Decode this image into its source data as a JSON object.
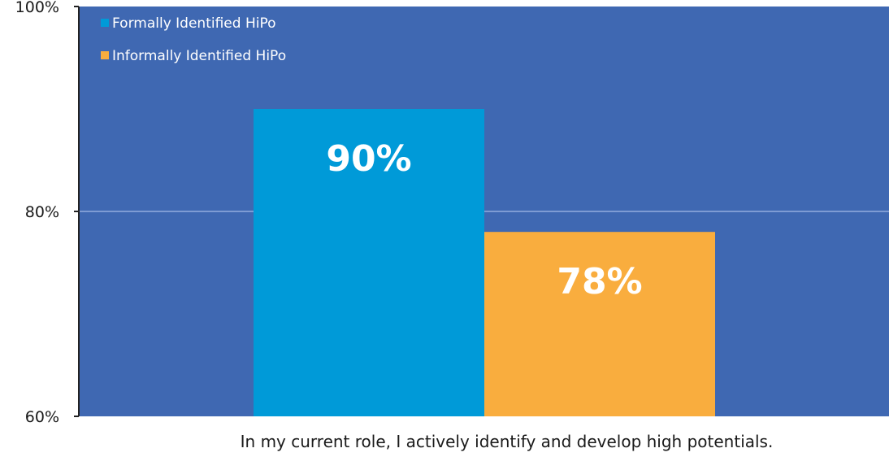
{
  "chart_data": {
    "type": "bar",
    "categories": [
      "In my current role, I actively identify and develop high potentials."
    ],
    "series": [
      {
        "name": "Formally Identified HiPo",
        "values": [
          90
        ],
        "color": "#009ad8",
        "label": "90%"
      },
      {
        "name": "Informally Identified HiPo",
        "values": [
          78
        ],
        "color": "#f9ad3e",
        "label": "78%"
      }
    ],
    "xlabel": "In my current role, I actively identify and develop high potentials.",
    "ylabel": "",
    "ylim": [
      60,
      100
    ],
    "yticks": [
      {
        "value": 60,
        "label": "60%"
      },
      {
        "value": 80,
        "label": "80%"
      },
      {
        "value": 100,
        "label": "100%"
      }
    ],
    "grid": true,
    "legend_position": "top-left",
    "colors": {
      "plot_background": "#3f68b2",
      "gridline": "#7e9bd3",
      "axis": "#222222"
    }
  }
}
